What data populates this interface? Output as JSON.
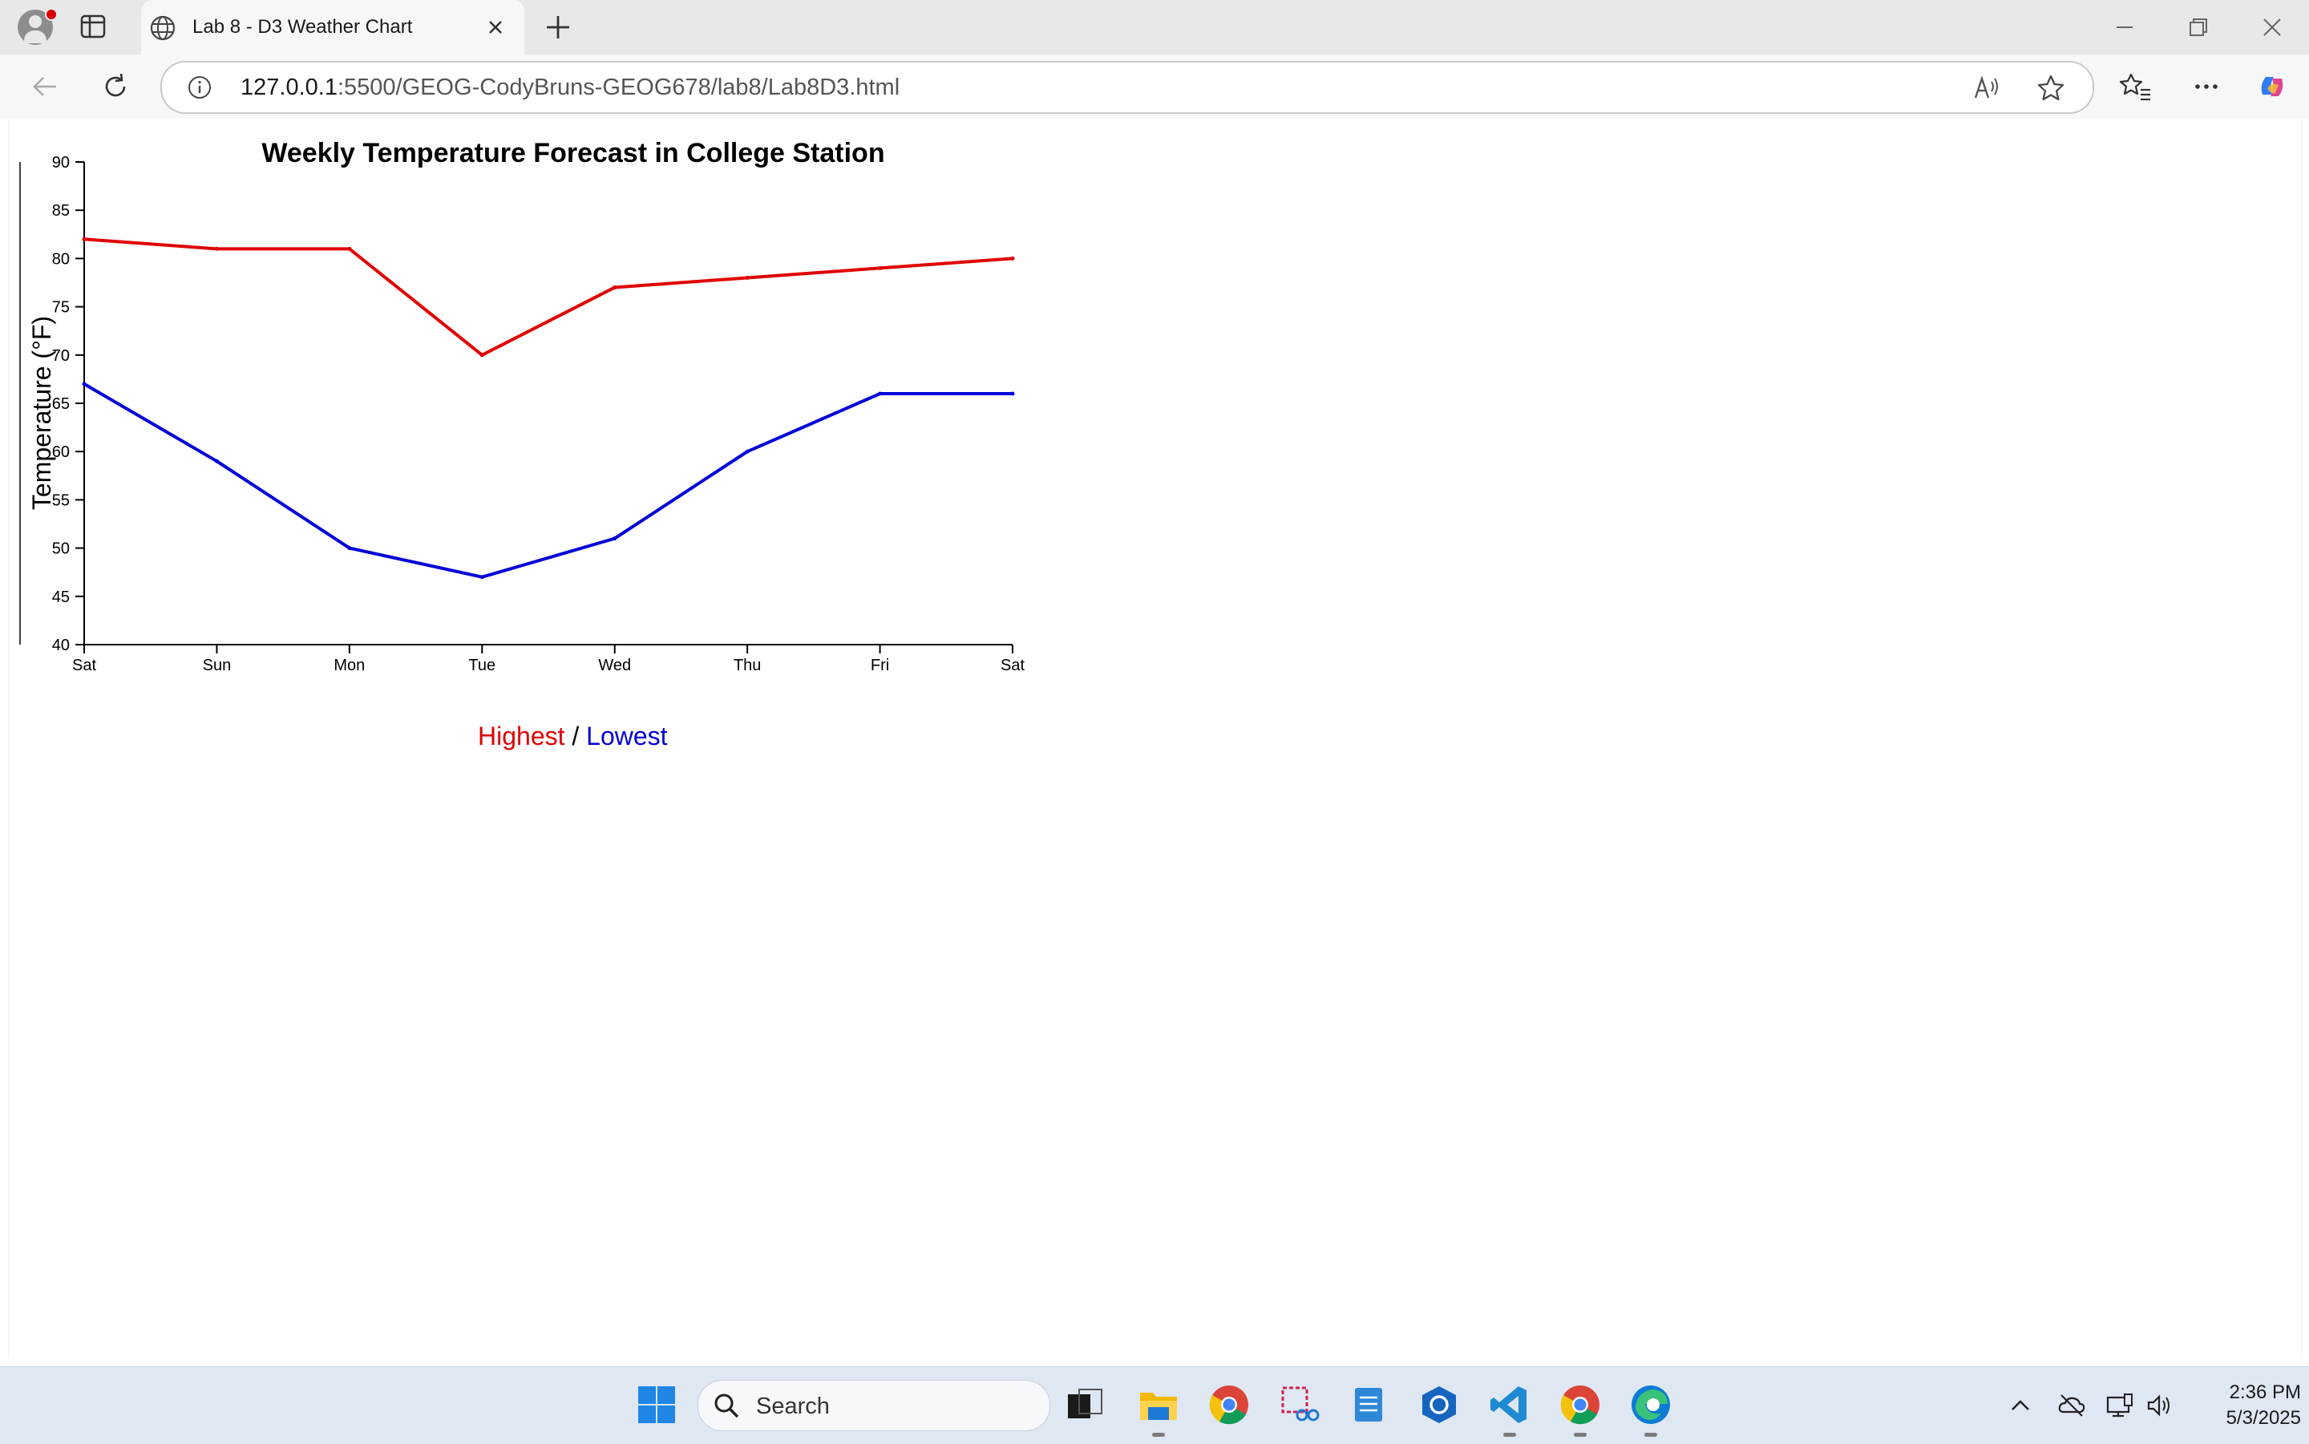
{
  "browser": {
    "tab_title": "Lab 8 - D3 Weather Chart",
    "url_host": "127.0.0.1",
    "url_path": ":5500/GEOG-CodyBruns-GEOG678/lab8/Lab8D3.html"
  },
  "legend": {
    "high_label": "Highest",
    "separator": " / ",
    "low_label": "Lowest"
  },
  "taskbar": {
    "search_label": "Search",
    "time": "2:36 PM",
    "date": "5/3/2025"
  },
  "chart_data": {
    "type": "line",
    "title": "Weekly Temperature Forecast in College Station",
    "ylabel": "Temperature (°F)",
    "xlabel": "",
    "categories": [
      "Sat",
      "Sun",
      "Mon",
      "Tue",
      "Wed",
      "Thu",
      "Fri",
      "Sat"
    ],
    "ylim": [
      40,
      90
    ],
    "yticks": [
      40,
      45,
      50,
      55,
      60,
      65,
      70,
      75,
      80,
      85,
      90
    ],
    "grid": false,
    "series": [
      {
        "name": "Highest",
        "color": "#e00000",
        "values": [
          82,
          81,
          81,
          70,
          77,
          78,
          79,
          80
        ]
      },
      {
        "name": "Lowest",
        "color": "#0000d8",
        "values": [
          67,
          59,
          50,
          47,
          51,
          60,
          66,
          66
        ]
      }
    ]
  }
}
